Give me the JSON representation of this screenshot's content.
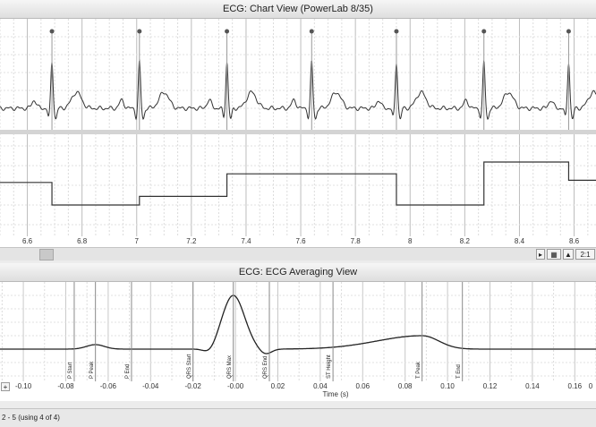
{
  "window": {
    "chart_title": "ECG: Chart View (PowerLab 8/35)",
    "averaging_title": "ECG: ECG Averaging View"
  },
  "chart_view": {
    "time_ticks": [
      "6.6",
      "6.8",
      "7",
      "7.2",
      "7.4",
      "7.6",
      "7.8",
      "8",
      "8.2",
      "8.4",
      "8.6"
    ],
    "zoom_label": "2:1"
  },
  "averaging_view": {
    "time_ticks": [
      "-0.10",
      "-0.08",
      "-0.06",
      "-0.04",
      "-0.02",
      "-0.00",
      "0.02",
      "0.04",
      "0.06",
      "0.08",
      "0.10",
      "0.12",
      "0.14",
      "0.16",
      "0"
    ],
    "xlabel": "Time (s)",
    "markers": [
      "P Start",
      "P Peak",
      "P End",
      "QRS Start",
      "QRS Max",
      "QRS End",
      "ST Height",
      "T Peak",
      "T End"
    ],
    "add_button": "+"
  },
  "status": {
    "text": "2 - 5 (using 4 of 4)"
  },
  "chart_data": [
    {
      "type": "line",
      "xlim": [
        6.5,
        8.68
      ],
      "beat_times": [
        6.69,
        7.01,
        7.33,
        7.64,
        7.95,
        8.27,
        8.58
      ],
      "rate_steps": {
        "x": [
          6.5,
          6.69,
          7.01,
          7.33,
          7.95,
          8.27,
          8.58,
          8.68
        ],
        "levels": [
          0.62,
          0.2,
          0.36,
          0.78,
          0.2,
          1.0,
          0.66
        ]
      }
    },
    {
      "type": "line",
      "xlabel": "Time (s)",
      "xlim": [
        -0.111,
        0.17
      ],
      "marker_times": [
        -0.076,
        -0.066,
        -0.049,
        -0.02,
        -0.001,
        0.016,
        0.046,
        0.088,
        0.107
      ]
    }
  ]
}
